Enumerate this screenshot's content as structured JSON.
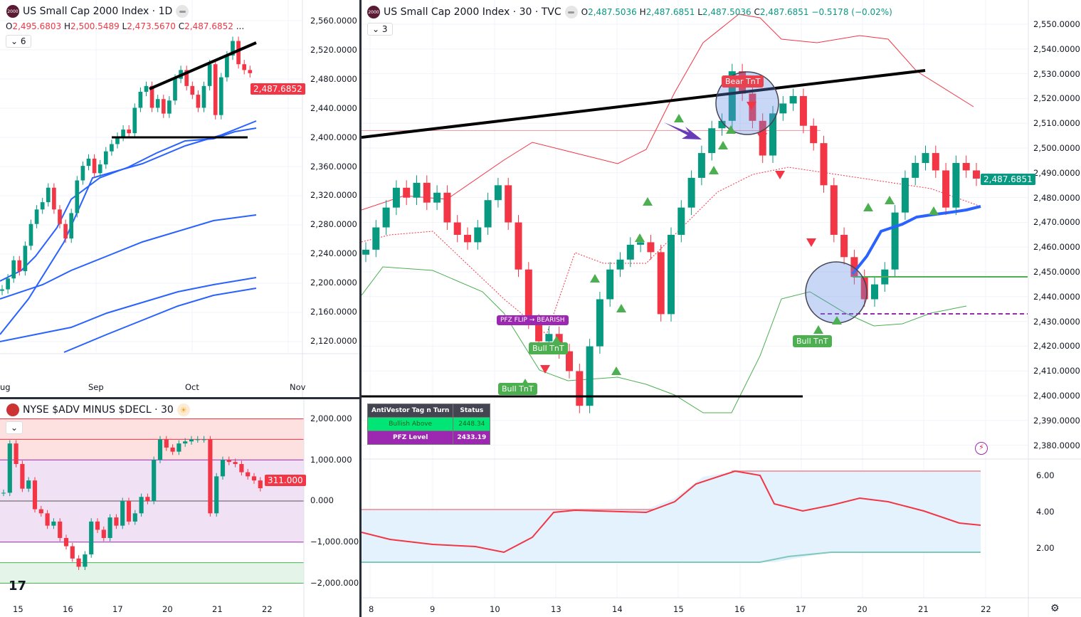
{
  "left_chart": {
    "title": "US Small Cap 2000 Index · 1D",
    "ohlc": {
      "o": "2,495.6803",
      "h": "2,500.5489",
      "l": "2,473.5670",
      "c": "2,487.6852",
      "more": "..."
    },
    "collapse_count": "6",
    "price_tag": "2,487.6852",
    "y_axis": [
      "2,560.0000",
      "2,520.0000",
      "2,480.0000",
      "2,440.0000",
      "2,400.0000",
      "2,360.0000",
      "2,320.0000",
      "2,280.0000",
      "2,240.0000",
      "2,200.0000",
      "2,160.0000",
      "2,120.0000"
    ],
    "x_axis": [
      "ug",
      "Sep",
      "Oct",
      "Nov"
    ],
    "closes": [
      2190,
      2205,
      2230,
      2215,
      2250,
      2280,
      2300,
      2310,
      2330,
      2300,
      2280,
      2260,
      2295,
      2340,
      2360,
      2370,
      2350,
      2362,
      2380,
      2390,
      2400,
      2410,
      2405,
      2440,
      2462,
      2470,
      2440,
      2452,
      2432,
      2450,
      2480,
      2492,
      2470,
      2458,
      2440,
      2470,
      2500,
      2430,
      2482,
      2512,
      2532,
      2500,
      2492,
      2487.69
    ]
  },
  "breadth_chart": {
    "title": "NYSE $ADV MINUS $DECL · 30",
    "price_tag": "311.000",
    "y_axis": [
      "2,000.000",
      "1,000.000",
      "0.000",
      "−1,000.000",
      "−2,000.000"
    ],
    "x_axis": [
      "15",
      "16",
      "17",
      "20",
      "21",
      "22"
    ],
    "values_thousands": [
      200,
      1400,
      900,
      300,
      500,
      -200,
      -300,
      -600,
      -500,
      -900,
      -1100,
      -1400,
      -1600,
      -1300,
      -500,
      -700,
      -900,
      -400,
      -600,
      0,
      -500,
      -300,
      100,
      0,
      1000,
      1500,
      1300,
      1200,
      1400,
      1450,
      1500,
      1500,
      1500,
      -300,
      600,
      1000,
      950,
      900,
      700,
      600,
      500,
      311
    ],
    "zones": {
      "overbought_color": "#fde0e0",
      "neutral_color": "#f1e1f4",
      "oversold_color": "#e4f4e8"
    }
  },
  "main_chart": {
    "title": "US Small Cap 2000 Index · 30 · TVC",
    "ohlc": {
      "o": "2,487.5036",
      "h": "2,487.6851",
      "l": "2,487.5036",
      "c": "2,487.6851",
      "change": "−0.5178 (−0.02%)"
    },
    "collapse_count": "3",
    "price_tag": "2,487.6851",
    "y_axis": [
      "2,550.0000",
      "2,540.0000",
      "2,530.0000",
      "2,520.0000",
      "2,510.0000",
      "2,500.0000",
      "2,490.0000",
      "2,480.0000",
      "2,470.0000",
      "2,460.0000",
      "2,450.0000",
      "2,440.0000",
      "2,430.0000",
      "2,420.0000",
      "2,410.0000",
      "2,400.0000",
      "2,390.0000",
      "2,380.0000"
    ],
    "indicator_axis": [
      "6.00",
      "4.00",
      "2.00"
    ],
    "x_axis": [
      "8",
      "9",
      "10",
      "13",
      "14",
      "15",
      "16",
      "17",
      "20",
      "21",
      "22"
    ],
    "closes": [
      2459,
      2468,
      2476,
      2484,
      2480,
      2486,
      2478,
      2482,
      2470,
      2465,
      2462,
      2468,
      2479,
      2485,
      2470,
      2451,
      2430,
      2422,
      2425,
      2418,
      2410,
      2396,
      2420,
      2439,
      2451,
      2455,
      2461,
      2462,
      2458,
      2433,
      2465,
      2476,
      2488,
      2498,
      2508,
      2511,
      2531,
      2522,
      2511,
      2497,
      2514,
      2518,
      2521,
      2509,
      2502,
      2485,
      2465,
      2456,
      2448,
      2439,
      2445,
      2451,
      2474,
      2488,
      2494,
      2498,
      2491,
      2476,
      2494,
      2491,
      2487.69
    ],
    "labels": {
      "bear": "Bear TnT",
      "bull1": "Bull TnT",
      "bull2": "Bull TnT",
      "bull3": "Bull TnT",
      "flip": "PFZ FLIP → BEARISH"
    },
    "table": {
      "headers": [
        "AntiVestor Tag n Turn",
        "Status"
      ],
      "rows": [
        [
          "Bullish Above",
          "2448.34"
        ],
        [
          "PFZ Level",
          "2433.19"
        ]
      ]
    },
    "colors": {
      "bull": "#089981",
      "bear": "#f23645",
      "ma": "#2962ff",
      "label_green": "#4caf50",
      "label_purple": "#9c27b0"
    }
  }
}
